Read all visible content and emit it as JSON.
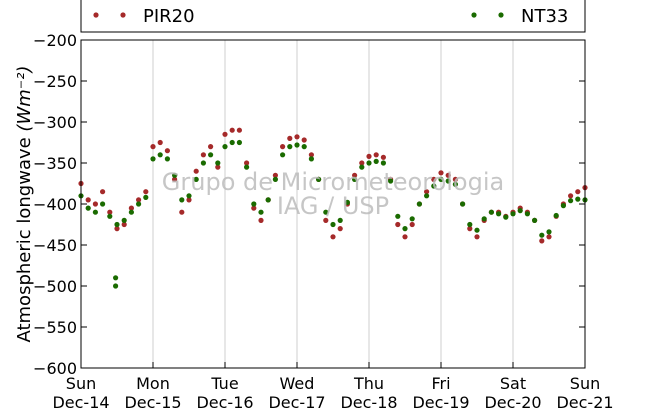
{
  "chart_data": {
    "type": "scatter",
    "title": "",
    "xlabel": "",
    "ylabel": "Atmospheric longwave",
    "ylabel_unit": "(Wm⁻²)",
    "ylim": [
      -600,
      -200
    ],
    "yticks": [
      -200,
      -250,
      -300,
      -350,
      -400,
      -450,
      -500,
      -550,
      -600
    ],
    "ytick_labels": [
      "−200",
      "−250",
      "−300",
      "−350",
      "−400",
      "−450",
      "−500",
      "−550",
      "−600"
    ],
    "xlim": [
      0,
      7
    ],
    "xticks": [
      {
        "day": "Sun",
        "date": "Dec-14"
      },
      {
        "day": "Mon",
        "date": "Dec-15"
      },
      {
        "day": "Tue",
        "date": "Dec-16"
      },
      {
        "day": "Wed",
        "date": "Dec-17"
      },
      {
        "day": "Thu",
        "date": "Dec-18"
      },
      {
        "day": "Fri",
        "date": "Dec-19"
      },
      {
        "day": "Sat",
        "date": "Dec-20"
      },
      {
        "day": "Sun",
        "date": "Dec-21"
      }
    ],
    "grid": "vertical",
    "legend_placement": "top",
    "watermark": [
      "Grupo de Micrometeorologia",
      "IAG / USP"
    ],
    "series": [
      {
        "name": "PIR20",
        "color": "#a52a2a",
        "x": [
          0.0,
          0.1,
          0.2,
          0.3,
          0.4,
          0.5,
          0.6,
          0.7,
          0.8,
          0.9,
          1.0,
          1.1,
          1.2,
          1.3,
          1.4,
          1.5,
          1.6,
          1.7,
          1.8,
          1.9,
          2.0,
          2.1,
          2.2,
          2.3,
          2.4,
          2.5,
          2.6,
          2.7,
          2.8,
          2.9,
          3.0,
          3.1,
          3.2,
          3.3,
          3.4,
          3.5,
          3.6,
          3.7,
          3.8,
          3.9,
          4.0,
          4.1,
          4.2,
          4.3,
          4.4,
          4.5,
          4.6,
          4.7,
          4.8,
          4.9,
          5.0,
          5.1,
          5.2,
          5.3,
          5.4,
          5.5,
          5.6,
          5.7,
          5.8,
          5.9,
          6.0,
          6.1,
          6.2,
          6.3,
          6.4,
          6.5,
          6.6,
          6.7,
          6.8,
          6.9,
          7.0
        ],
        "y": [
          -375,
          -395,
          -400,
          -385,
          -410,
          -430,
          -425,
          -405,
          -395,
          -385,
          -330,
          -325,
          -335,
          -370,
          -410,
          -395,
          -360,
          -340,
          -330,
          -355,
          -315,
          -310,
          -310,
          -350,
          -405,
          -420,
          -395,
          -365,
          -330,
          -320,
          -318,
          -322,
          -340,
          -370,
          -420,
          -440,
          -430,
          -400,
          -365,
          -350,
          -342,
          -340,
          -343,
          -370,
          -425,
          -440,
          -425,
          -400,
          -385,
          -370,
          -362,
          -365,
          -370,
          -400,
          -430,
          -440,
          -420,
          -410,
          -410,
          -415,
          -410,
          -405,
          -410,
          -420,
          -445,
          -440,
          -415,
          -400,
          -390,
          -385,
          -380
        ]
      },
      {
        "name": "NT33",
        "color": "#1a6b00",
        "x": [
          0.0,
          0.1,
          0.2,
          0.3,
          0.4,
          0.5,
          0.6,
          0.7,
          0.8,
          0.9,
          1.0,
          1.1,
          1.2,
          1.3,
          1.4,
          1.5,
          1.6,
          1.7,
          1.8,
          1.9,
          2.0,
          2.1,
          2.2,
          2.3,
          2.4,
          2.5,
          2.6,
          2.7,
          2.8,
          2.9,
          3.0,
          3.1,
          3.2,
          3.3,
          3.4,
          3.5,
          3.6,
          3.7,
          3.8,
          3.9,
          4.0,
          4.1,
          4.2,
          4.3,
          4.4,
          4.5,
          4.6,
          4.7,
          4.8,
          4.9,
          5.0,
          5.1,
          5.2,
          5.3,
          5.4,
          5.5,
          5.6,
          5.7,
          5.8,
          5.9,
          6.0,
          6.1,
          6.2,
          6.3,
          6.4,
          6.5,
          6.6,
          6.7,
          6.8,
          6.9,
          7.0
        ],
        "y": [
          -390,
          -405,
          -410,
          -400,
          -415,
          -425,
          -420,
          -410,
          -400,
          -392,
          -345,
          -340,
          -345,
          -365,
          -395,
          -390,
          -370,
          -350,
          -340,
          -350,
          -330,
          -325,
          -325,
          -355,
          -400,
          -410,
          -395,
          -370,
          -340,
          -330,
          -328,
          -330,
          -345,
          -370,
          -410,
          -425,
          -420,
          -398,
          -370,
          -355,
          -350,
          -348,
          -350,
          -372,
          -415,
          -430,
          -418,
          -400,
          -390,
          -378,
          -370,
          -372,
          -376,
          -400,
          -425,
          -432,
          -418,
          -410,
          -412,
          -416,
          -412,
          -408,
          -412,
          -420,
          -438,
          -434,
          -414,
          -402,
          -396,
          -394,
          -395
        ]
      },
      {
        "name": "NT33-outliers",
        "color": "#1a6b00",
        "x": [
          0.48,
          0.48
        ],
        "y": [
          -490,
          -500
        ]
      }
    ]
  }
}
